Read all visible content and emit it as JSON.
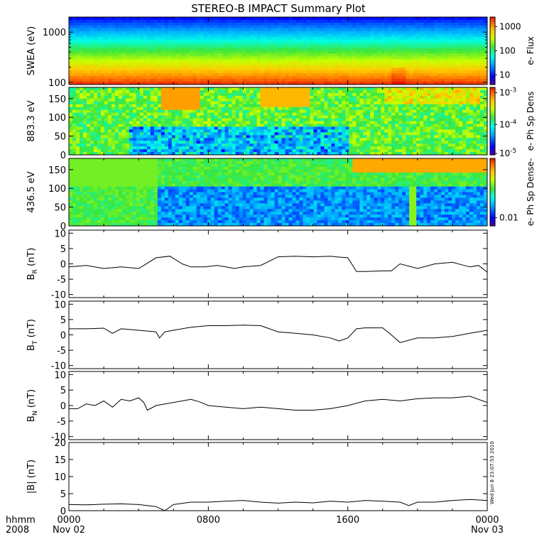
{
  "title": "STEREO-B IMPACT Summary Plot",
  "colors": {
    "line": "#000000",
    "background": "#ffffff"
  },
  "x_axis": {
    "label_top": "hhmm",
    "label_bottom": "2008",
    "ticks": [
      {
        "value": 0,
        "label": "0000",
        "sublabel": "Nov 02"
      },
      {
        "value": 8,
        "label": "0800",
        "sublabel": ""
      },
      {
        "value": 16,
        "label": "1600",
        "sublabel": ""
      },
      {
        "value": 24,
        "label": "0000",
        "sublabel": "Nov 03"
      }
    ],
    "range_hours": [
      0,
      24
    ]
  },
  "timestamp": "Wed Jun  8 23:07:53 2010",
  "chart_data": [
    {
      "type": "heatmap",
      "ylabel": "SWEA (eV)",
      "yscale": "log",
      "ylim": [
        90,
        2000
      ],
      "y_ticks": [
        100,
        1000
      ],
      "colorbar": {
        "label": "e- Flux",
        "scale": "log",
        "ticks": [
          10,
          100,
          1000
        ],
        "range": [
          4,
          2500
        ]
      },
      "description_values": {
        "energy_eV": [
          100,
          200,
          400,
          800,
          1600
        ],
        "typical_flux": [
          1800,
          600,
          120,
          25,
          6
        ]
      }
    },
    {
      "type": "heatmap",
      "ylabel": "883.3 eV",
      "ylim": [
        0,
        180
      ],
      "y_ticks": [
        0,
        50,
        100,
        150
      ],
      "colorbar": {
        "label": "e- Ph Sp Dens",
        "scale": "log",
        "ticks": [
          "10^-3",
          "10^-4",
          "10^-5"
        ],
        "range": [
          "4e-6",
          "2e-3"
        ]
      }
    },
    {
      "type": "heatmap",
      "ylabel": "436.5 eV",
      "ylim": [
        0,
        180
      ],
      "y_ticks": [
        0,
        50,
        100,
        150
      ],
      "colorbar": {
        "label": "e- Ph Sp Dense-",
        "scale": "log",
        "ticks": [
          "0.01"
        ],
        "range": [
          "5e-3",
          "0.1"
        ]
      }
    },
    {
      "type": "line",
      "ylabel": "B_R (nT)",
      "ylabel_main": "B",
      "ylabel_sub": "R",
      "ylabel_unit": "(nT)",
      "ylim": [
        -11,
        11
      ],
      "y_ticks": [
        -10,
        -5,
        0,
        5,
        10
      ],
      "x": [
        0,
        1,
        2,
        3,
        4,
        4.3,
        5,
        5.8,
        6.5,
        7,
        7.8,
        8.5,
        9,
        9.5,
        10,
        11,
        12,
        13,
        14,
        15,
        15.5,
        16,
        16.5,
        17,
        18,
        18.5,
        19,
        20,
        21,
        22,
        23,
        23.5,
        24
      ],
      "y": [
        -1,
        -0.5,
        -1.5,
        -1,
        -1.5,
        -0.5,
        2,
        2.5,
        0,
        -1,
        -1,
        -0.5,
        -1,
        -1.5,
        -1,
        -0.5,
        2.3,
        2.5,
        2.3,
        2.5,
        2.2,
        2,
        -2.5,
        -2.5,
        -2.3,
        -2.3,
        0,
        -1.5,
        0,
        0.5,
        -1,
        -0.5,
        -2.7
      ]
    },
    {
      "type": "line",
      "ylabel": "B_T (nT)",
      "ylabel_main": "B",
      "ylabel_sub": "T",
      "ylabel_unit": "(nT)",
      "ylim": [
        -11,
        11
      ],
      "y_ticks": [
        -10,
        -5,
        0,
        5,
        10
      ],
      "x": [
        0,
        1,
        2,
        2.5,
        3,
        4,
        5,
        5.2,
        5.5,
        6,
        7,
        8,
        9,
        10,
        11,
        12,
        13,
        14,
        15,
        15.5,
        16,
        16.5,
        17,
        18,
        18.5,
        19,
        20,
        21,
        22,
        23,
        24
      ],
      "y": [
        2,
        2,
        2.2,
        0.5,
        2,
        1.5,
        1,
        -1,
        1,
        1.5,
        2.5,
        3,
        3,
        3.2,
        3,
        1,
        0.5,
        0,
        -1,
        -2,
        -1,
        2,
        2.3,
        2.3,
        0,
        -2.5,
        -1,
        -1,
        -0.5,
        0.5,
        1.5
      ]
    },
    {
      "type": "line",
      "ylabel": "B_N (nT)",
      "ylabel_main": "B",
      "ylabel_sub": "N",
      "ylabel_unit": "(nT)",
      "ylim": [
        -11,
        11
      ],
      "y_ticks": [
        -10,
        -5,
        0,
        5,
        10
      ],
      "x": [
        0,
        0.5,
        1,
        1.5,
        2,
        2.5,
        3,
        3.5,
        4,
        4.3,
        4.5,
        5,
        6,
        7,
        7.5,
        8,
        9,
        10,
        11,
        12,
        13,
        14,
        15,
        16,
        17,
        18,
        19,
        20,
        21,
        22,
        23,
        24
      ],
      "y": [
        -1,
        -1,
        0.5,
        0,
        1.5,
        -0.5,
        2,
        1.5,
        2.5,
        1,
        -1.5,
        0,
        1,
        2,
        1.2,
        0,
        -0.5,
        -1,
        -0.5,
        -1,
        -1.5,
        -1.5,
        -1,
        0,
        1.5,
        2,
        1.5,
        2.2,
        2.5,
        2.5,
        3,
        1
      ]
    },
    {
      "type": "line",
      "ylabel": "|B| (nT)",
      "ylabel_main": "|B|",
      "ylabel_sub": "",
      "ylabel_unit": "(nT)",
      "ylim": [
        0,
        20
      ],
      "y_ticks": [
        0,
        5,
        10,
        15,
        20
      ],
      "x": [
        0,
        1,
        2,
        3,
        4,
        5,
        5.5,
        6,
        7,
        8,
        9,
        10,
        11,
        12,
        13,
        14,
        15,
        16,
        17,
        18,
        19,
        19.5,
        20,
        21,
        22,
        23,
        24
      ],
      "y": [
        1.8,
        1.7,
        1.9,
        2,
        1.8,
        1.2,
        0,
        1.8,
        2.5,
        2.5,
        2.8,
        3,
        2.5,
        2.2,
        2.5,
        2.3,
        2.8,
        2.5,
        3,
        2.8,
        2.5,
        1.5,
        2.5,
        2.5,
        3,
        3.3,
        3
      ]
    }
  ]
}
